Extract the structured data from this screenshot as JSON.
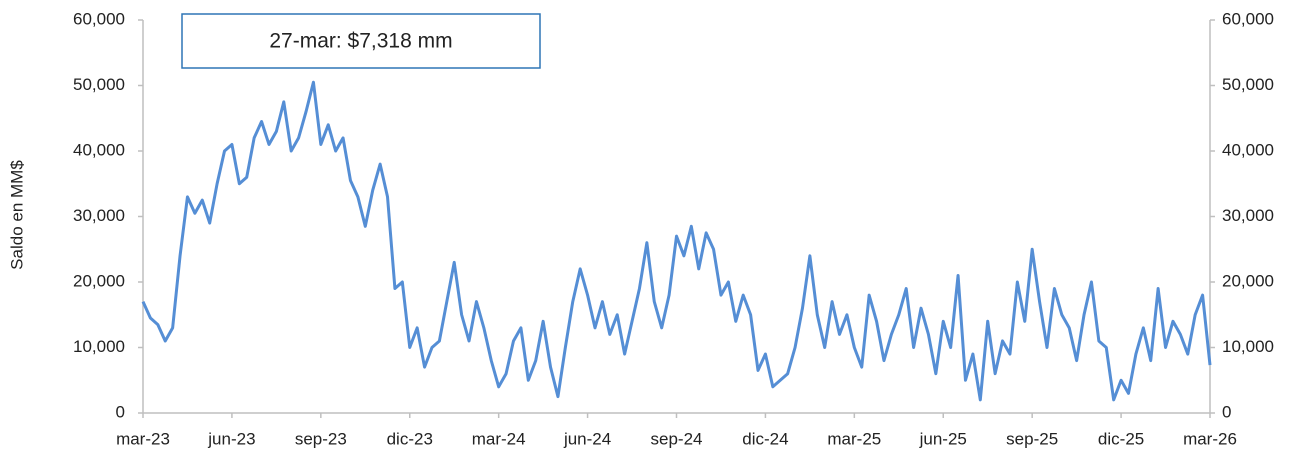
{
  "chart_data": {
    "type": "line",
    "annotation": "27-mar: $7,318 mm",
    "y_label": "Saldo en MM$",
    "categories": [
      "mar-23",
      null,
      null,
      null,
      null,
      null,
      null,
      null,
      null,
      null,
      null,
      null,
      "jun-23",
      null,
      null,
      null,
      null,
      null,
      null,
      null,
      null,
      null,
      null,
      null,
      "sep-23",
      null,
      null,
      null,
      null,
      null,
      null,
      null,
      null,
      null,
      null,
      null,
      "dic-23",
      null,
      null,
      null,
      null,
      null,
      null,
      null,
      null,
      null,
      null,
      null,
      "mar-24",
      null,
      null,
      null,
      null,
      null,
      null,
      null,
      null,
      null,
      null,
      null,
      "jun-24",
      null,
      null,
      null,
      null,
      null,
      null,
      null,
      null,
      null,
      null,
      null,
      "sep-24",
      null,
      null,
      null,
      null,
      null,
      null,
      null,
      null,
      null,
      null,
      null,
      "dic-24",
      null,
      null,
      null,
      null,
      null,
      null,
      null,
      null,
      null,
      null,
      null,
      "mar-25",
      null,
      null,
      null,
      null,
      null,
      null,
      null,
      null,
      null,
      null,
      null,
      "jun-25",
      null,
      null,
      null,
      null,
      null,
      null,
      null,
      null,
      null,
      null,
      null,
      "sep-25",
      null,
      null,
      null,
      null,
      null,
      null,
      null,
      null,
      null,
      null,
      null,
      "dic-25",
      null,
      null,
      null,
      null,
      null,
      null,
      null,
      null,
      null,
      null,
      null,
      "mar-26"
    ],
    "series": [
      {
        "color": "#558ed5",
        "values": [
          17000,
          14500,
          13500,
          11000,
          13000,
          24000,
          33000,
          30500,
          32500,
          29000,
          35000,
          40000,
          41000,
          35000,
          36000,
          42000,
          44500,
          41000,
          43000,
          47500,
          40000,
          42000,
          46000,
          50500,
          41000,
          44000,
          40000,
          42000,
          35500,
          33000,
          28500,
          34000,
          38000,
          33000,
          19000,
          20000,
          10000,
          13000,
          7000,
          10000,
          11000,
          17000,
          23000,
          15000,
          11000,
          17000,
          13000,
          8000,
          4000,
          6000,
          11000,
          13000,
          5000,
          8000,
          14000,
          7000,
          2500,
          10000,
          17000,
          22000,
          18000,
          13000,
          17000,
          12000,
          15000,
          9000,
          14000,
          19000,
          26000,
          17000,
          13000,
          18000,
          27000,
          24000,
          28500,
          22000,
          27500,
          25000,
          18000,
          20000,
          14000,
          18000,
          15000,
          6500,
          9000,
          4000,
          5000,
          6000,
          10000,
          16000,
          24000,
          15000,
          10000,
          17000,
          12000,
          15000,
          10000,
          7000,
          18000,
          14000,
          8000,
          12000,
          15000,
          19000,
          10000,
          16000,
          12000,
          6000,
          14000,
          10000,
          21000,
          5000,
          9000,
          2000,
          14000,
          6000,
          11000,
          9000,
          20000,
          14000,
          25000,
          17000,
          10000,
          19000,
          15000,
          13000,
          8000,
          15000,
          20000,
          11000,
          10000,
          2000,
          5000,
          3000,
          9000,
          13000,
          8000,
          19000,
          10000,
          14000,
          12000,
          9000,
          15000,
          18000,
          7318
        ]
      }
    ],
    "ylim": [
      0,
      60000
    ],
    "yticks": [
      0,
      {
        "value": 10000,
        "label": "10,000"
      },
      {
        "value": 20000,
        "label": "20,000"
      },
      {
        "value": 30000,
        "label": "30,000"
      },
      {
        "value": 40000,
        "label": "40,000"
      },
      {
        "value": 50000,
        "label": "50,000"
      },
      {
        "value": 60000,
        "label": "60,000"
      }
    ],
    "y2lim": [
      0,
      60000
    ],
    "y2ticks": [
      0,
      {
        "value": 10000,
        "label": "10,000"
      },
      {
        "value": 20000,
        "label": "20,000"
      },
      {
        "value": 30000,
        "label": "30,000"
      },
      {
        "value": 40000,
        "label": "40,000"
      },
      {
        "value": 50000,
        "label": "50,000"
      },
      {
        "value": 60000,
        "label": "60,000"
      }
    ],
    "grid": false
  }
}
